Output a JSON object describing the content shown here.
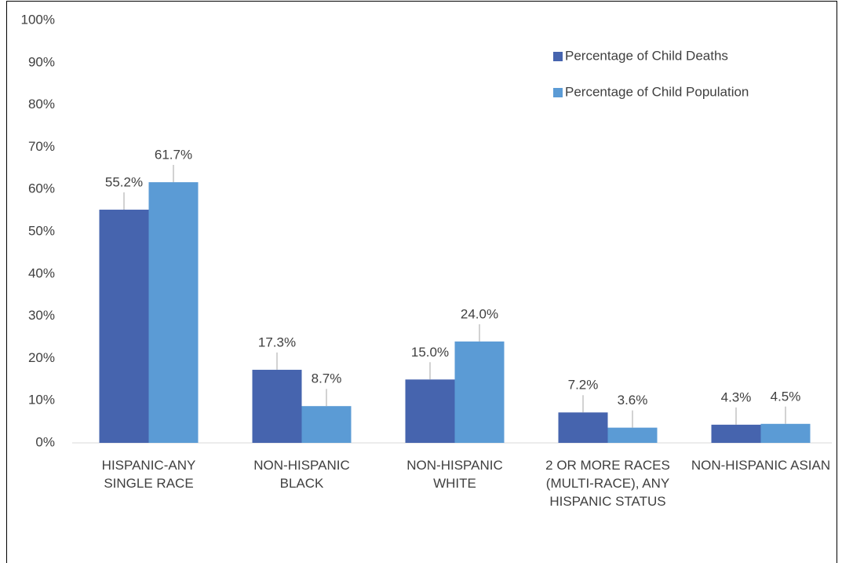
{
  "chart_data": {
    "type": "bar",
    "categories": [
      "HISPANIC-ANY SINGLE RACE",
      "NON-HISPANIC BLACK",
      "NON-HISPANIC WHITE",
      "2 OR MORE RACES (MULTI-RACE), ANY HISPANIC STATUS",
      "NON-HISPANIC ASIAN"
    ],
    "series": [
      {
        "name": "Percentage of Child Deaths",
        "color": "#4664ae",
        "values": [
          55.2,
          17.3,
          15.0,
          7.2,
          4.3
        ],
        "value_labels": [
          "55.2%",
          "17.3%",
          "15.0%",
          "7.2%",
          "4.3%"
        ]
      },
      {
        "name": "Percentage of Child Population",
        "color": "#5b9bd5",
        "values": [
          61.7,
          8.7,
          24.0,
          3.6,
          4.5
        ],
        "value_labels": [
          "61.7%",
          "8.7%",
          "24.0%",
          "3.6%",
          "4.5%"
        ]
      }
    ],
    "ylim": [
      0,
      100
    ],
    "yticks": [
      {
        "value": 0,
        "label": "0%"
      },
      {
        "value": 10,
        "label": "10%"
      },
      {
        "value": 20,
        "label": "20%"
      },
      {
        "value": 30,
        "label": "30%"
      },
      {
        "value": 40,
        "label": "40%"
      },
      {
        "value": 50,
        "label": "50%"
      },
      {
        "value": 60,
        "label": "60%"
      },
      {
        "value": 70,
        "label": "70%"
      },
      {
        "value": 80,
        "label": "80%"
      },
      {
        "value": 90,
        "label": "90%"
      },
      {
        "value": 100,
        "label": "100%"
      }
    ],
    "grid": false,
    "legend": "top-right"
  }
}
